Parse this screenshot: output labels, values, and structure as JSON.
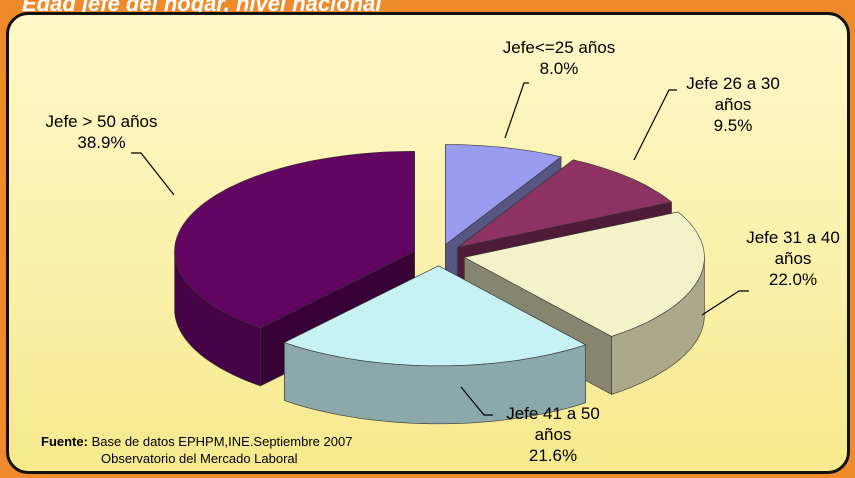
{
  "chart_data": {
    "type": "pie",
    "title": "Edad jefe del hogar, nivel nacional",
    "categories": [
      "Jefe<=25 años",
      "Jefe 26 a 30 años",
      "Jefe 31 a 40 años",
      "Jefe 41 a 50 años",
      "Jefe > 50 años"
    ],
    "values": [
      8.0,
      9.5,
      22.0,
      21.6,
      38.9
    ],
    "value_labels": [
      "8.0%",
      "9.5%",
      "22.0%",
      "21.6%",
      "38.9%"
    ],
    "colors": [
      "#9a9cf0",
      "#8e3262",
      "#f4f2c8",
      "#c6f2f4",
      "#640462"
    ],
    "source_label": "Fuente:",
    "source_lines": [
      "Base de datos EPHPM,INE.Septiembre 2007",
      "Observatorio del Mercado Laboral"
    ]
  }
}
